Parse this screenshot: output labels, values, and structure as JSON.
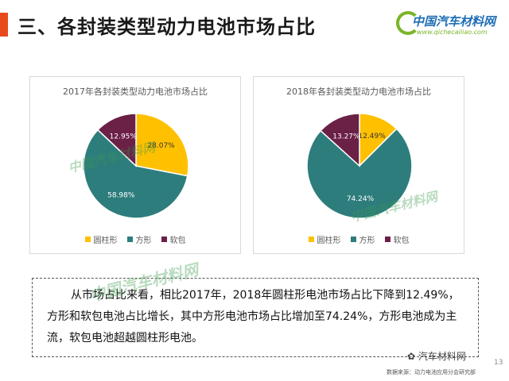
{
  "slide": {
    "title": "三、各封装类型动力电池市场占比",
    "logo": {
      "name": "中国汽车材料网",
      "url": "www.qichecailiao.com"
    },
    "watermark": "中国汽车材料网",
    "colors": {
      "cylindrical": "#FFC000",
      "prismatic": "#2E7D7D",
      "pouch": "#6B2046",
      "title_marker": "#E8491D"
    },
    "text": "从市场占比来看，相比2017年，2018年圆柱形电池市场占比下降到12.49%，方形和软包电池占比增长，其中方形电池市场占比增加至74.24%，方形电池成为主流，软包电池超越圆柱形电池。",
    "footer_source": "数据来源：动力电池应用分会研究部",
    "page_number": "13",
    "wechat_tag": "汽车材料网"
  },
  "chart_data": [
    {
      "type": "pie",
      "title": "2017年各封装类型动力电池市场占比",
      "categories": [
        "圆柱形",
        "方形",
        "软包"
      ],
      "values": [
        28.07,
        58.98,
        12.95
      ],
      "labels": [
        "28.07%",
        "58.98%",
        "12.95%"
      ],
      "legend": "bottom"
    },
    {
      "type": "pie",
      "title": "2018年各封装类型动力电池市场占比",
      "categories": [
        "圆柱形",
        "方形",
        "软包"
      ],
      "values": [
        12.49,
        74.24,
        13.27
      ],
      "labels": [
        "12.49%",
        "74.24%",
        "13.27%"
      ],
      "legend": "bottom"
    }
  ]
}
